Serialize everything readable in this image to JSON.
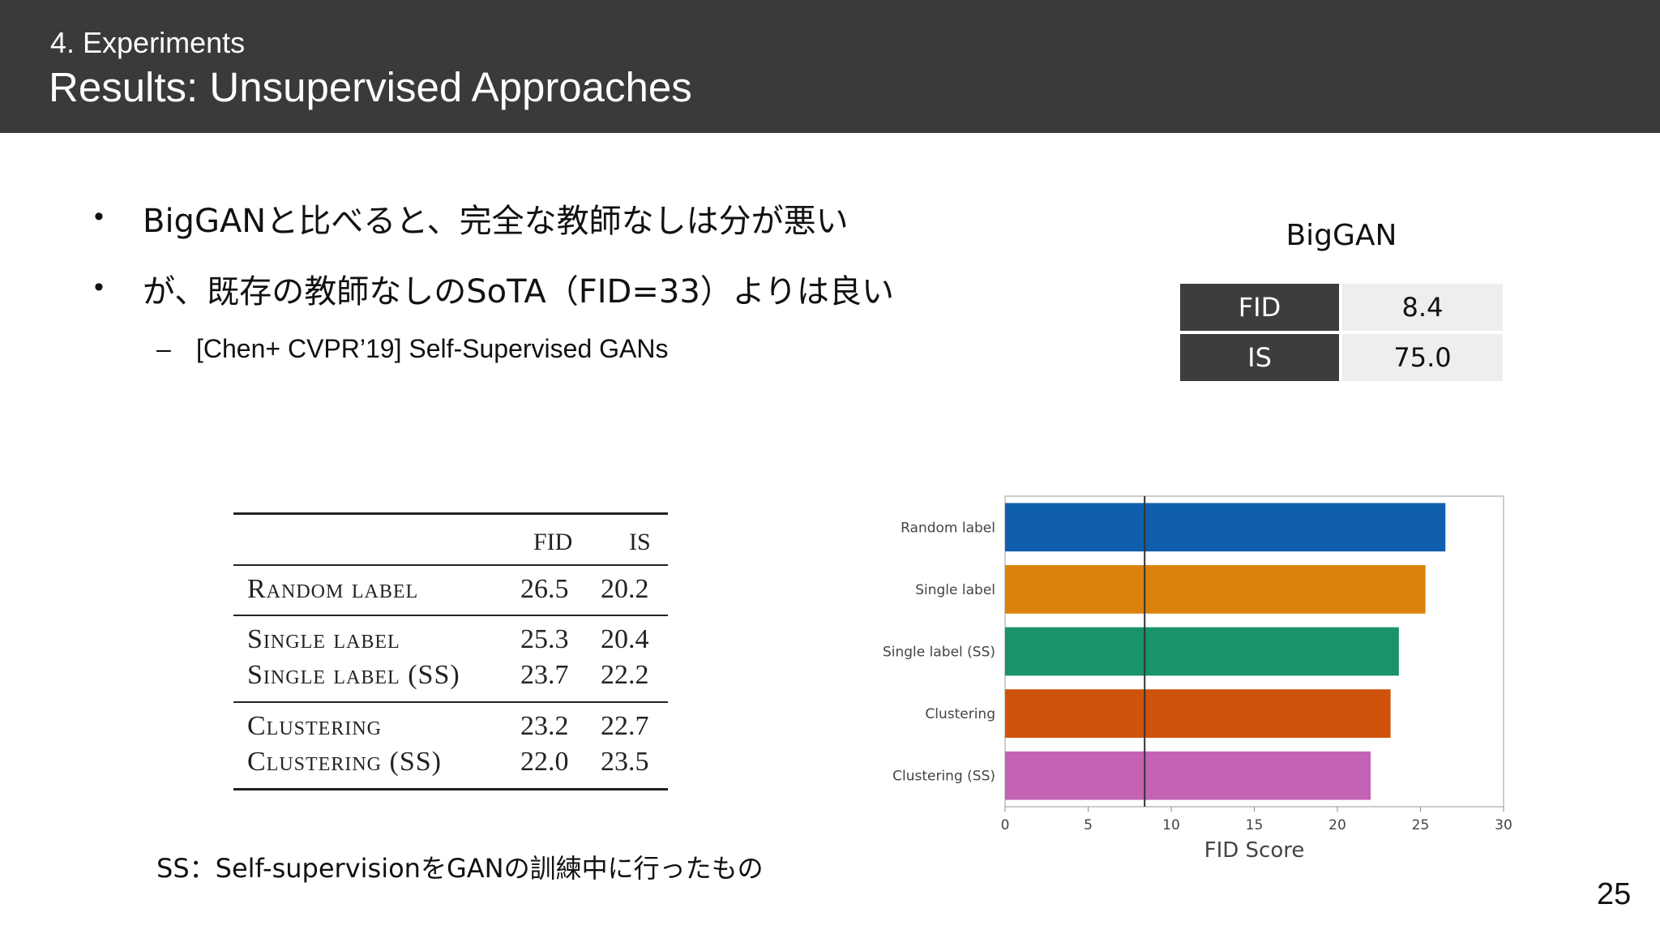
{
  "header": {
    "section": "4. Experiments",
    "title": "Results: Unsupervised Approaches"
  },
  "bullets": [
    "BigGANと比べると、完全な教師なしは分が悪い",
    "が、既存の教師なしのSoTA（FID=33）よりは良い"
  ],
  "bullet_symbol": "•",
  "sub_bullet": {
    "symbol": "–",
    "text": "[Chen+ CVPR’19] Self-Supervised GANs"
  },
  "biggan_table": {
    "caption": "BigGAN",
    "rows": [
      {
        "metric": "FID",
        "value": "8.4"
      },
      {
        "metric": "IS",
        "value": "75.0"
      }
    ]
  },
  "results_table": {
    "headers": [
      "FID",
      "IS"
    ],
    "groups": [
      [
        {
          "name": "Random label",
          "fid": "26.5",
          "is": "20.2"
        }
      ],
      [
        {
          "name": "Single label",
          "fid": "25.3",
          "is": "20.4"
        },
        {
          "name": "Single label (SS)",
          "fid": "23.7",
          "is": "22.2"
        }
      ],
      [
        {
          "name": "Clustering",
          "fid": "23.2",
          "is": "22.7"
        },
        {
          "name": "Clustering (SS)",
          "fid": "22.0",
          "is": "23.5"
        }
      ]
    ]
  },
  "chart_data": {
    "type": "bar",
    "orientation": "horizontal",
    "categories": [
      "Random label",
      "Single label",
      "Single label (SS)",
      "Clustering",
      "Clustering (SS)"
    ],
    "values": [
      26.5,
      25.3,
      23.7,
      23.2,
      22.0
    ],
    "colors": [
      "#0f5fad",
      "#d9820d",
      "#18936a",
      "#d0530b",
      "#c462b4"
    ],
    "xlabel": "FID Score",
    "xlim": [
      0,
      30
    ],
    "xticks": [
      0,
      5,
      10,
      15,
      20,
      25,
      30
    ],
    "reference_line": 8.4,
    "grid": false
  },
  "footnote": "SS：Self-supervisionをGANの訓練中に行ったもの",
  "page_number": "25"
}
